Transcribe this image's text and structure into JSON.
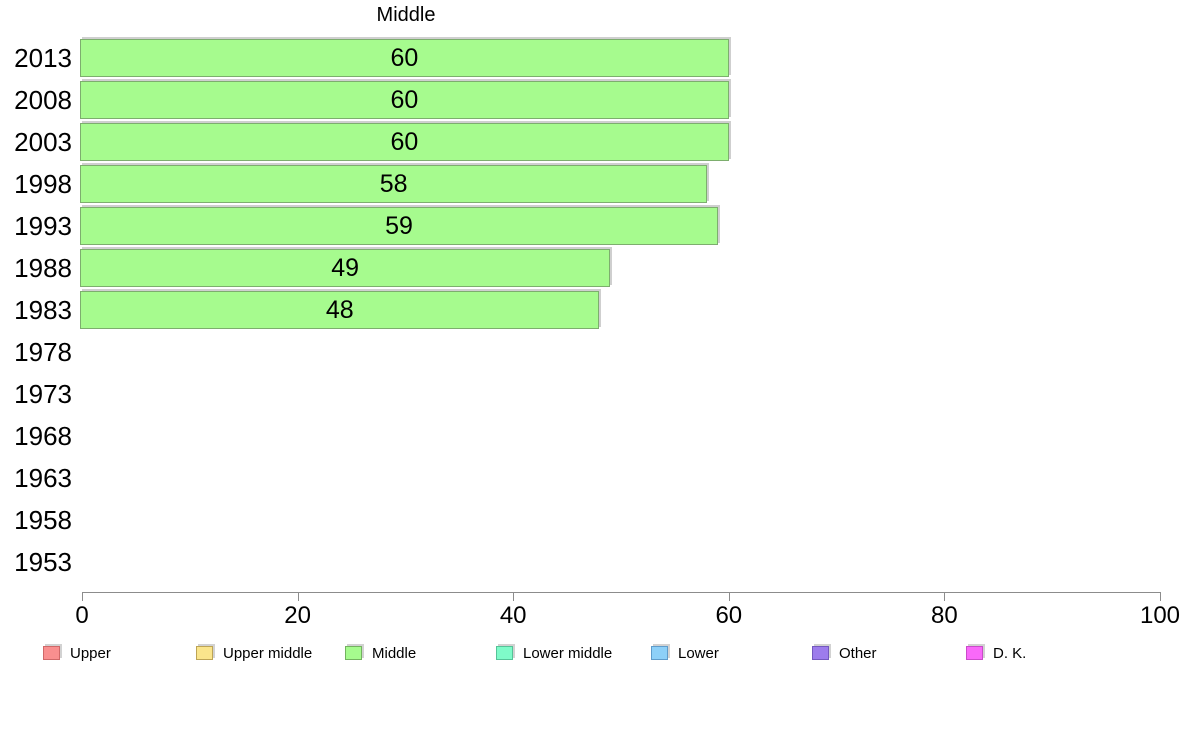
{
  "chart_data": {
    "type": "bar",
    "orientation": "horizontal",
    "title": "Middle",
    "categories": [
      "2013",
      "2008",
      "2003",
      "1998",
      "1993",
      "1988",
      "1983",
      "1978",
      "1973",
      "1968",
      "1963",
      "1958",
      "1953"
    ],
    "values": [
      60,
      60,
      60,
      58,
      59,
      49,
      48,
      null,
      null,
      null,
      null,
      null,
      null
    ],
    "xlabel": "",
    "ylabel": "",
    "xlim": [
      0,
      100
    ],
    "x_ticks": [
      0,
      20,
      40,
      60,
      80,
      100
    ],
    "grid": false,
    "legend_position": "bottom",
    "bar_fill_color": "#a6fb8e",
    "bar_border_color": "#7dae6e",
    "axis_color": "#8c8c8c"
  },
  "legend": {
    "items": [
      {
        "label": "Upper",
        "fill": "#f98f8f",
        "border": "#cf6868"
      },
      {
        "label": "Upper middle",
        "fill": "#fae58c",
        "border": "#bda455"
      },
      {
        "label": "Middle",
        "fill": "#a6fb8e",
        "border": "#73b25f"
      },
      {
        "label": "Lower middle",
        "fill": "#7ffbc9",
        "border": "#55c398"
      },
      {
        "label": "Lower",
        "fill": "#8dd0f8",
        "border": "#5f9ccb"
      },
      {
        "label": "Other",
        "fill": "#9d7cec",
        "border": "#7459be"
      },
      {
        "label": "D. K.",
        "fill": "#f969f9",
        "border": "#c94cc9"
      }
    ]
  }
}
